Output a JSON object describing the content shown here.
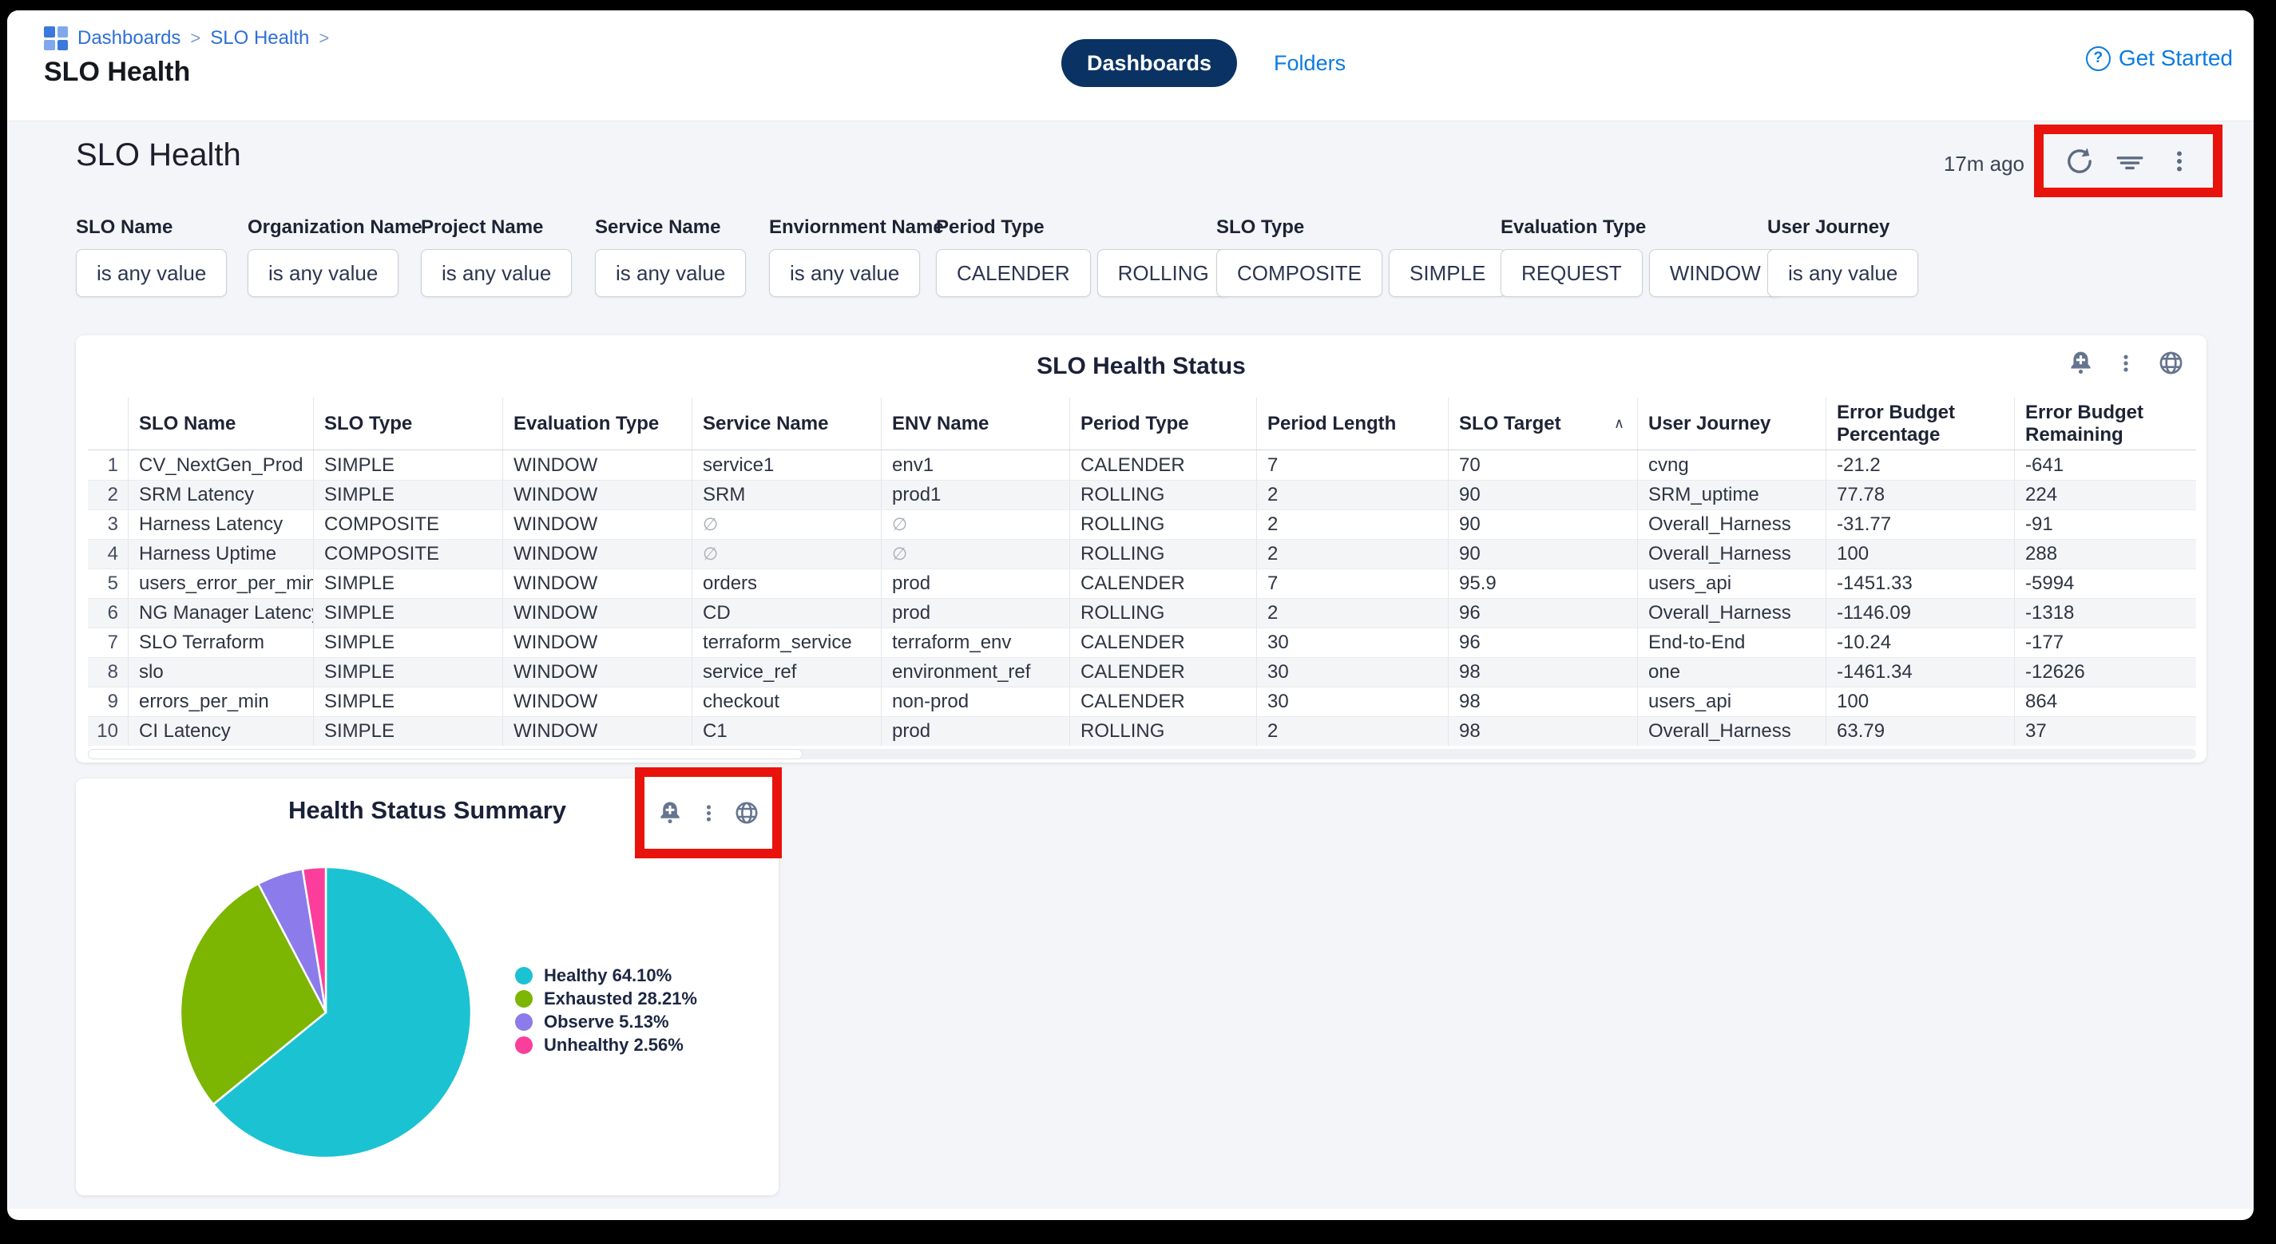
{
  "topbar": {
    "breadcrumb": {
      "items": [
        "Dashboards",
        "SLO Health"
      ],
      "separator": ">"
    },
    "page_title": "SLO Health",
    "tabs": {
      "dashboards": "Dashboards",
      "folders": "Folders"
    },
    "get_started_label": "Get Started",
    "help_icon_glyph": "?"
  },
  "dashboard": {
    "title": "SLO Health",
    "last_refreshed": "17m ago"
  },
  "filters": [
    {
      "label": "SLO Name",
      "chips": [
        "is any value"
      ]
    },
    {
      "label": "Organization Name",
      "chips": [
        "is any value"
      ]
    },
    {
      "label": "Project Name",
      "chips": [
        "is any value"
      ]
    },
    {
      "label": "Service Name",
      "chips": [
        "is any value"
      ]
    },
    {
      "label": "Enviornment Name",
      "chips": [
        "is any value"
      ]
    },
    {
      "label": "Period Type",
      "chips": [
        "CALENDER",
        "ROLLING"
      ]
    },
    {
      "label": "SLO Type",
      "chips": [
        "COMPOSITE",
        "SIMPLE"
      ]
    },
    {
      "label": "Evaluation Type",
      "chips": [
        "REQUEST",
        "WINDOW"
      ]
    },
    {
      "label": "User Journey",
      "chips": [
        "is any value"
      ]
    }
  ],
  "table": {
    "title": "SLO Health Status",
    "columns": [
      [
        "SLO Name"
      ],
      [
        "SLO Type"
      ],
      [
        "Evaluation Type"
      ],
      [
        "Service Name"
      ],
      [
        "ENV Name"
      ],
      [
        "Period Type"
      ],
      [
        "Period Length"
      ],
      [
        "SLO Target"
      ],
      [
        "User Journey"
      ],
      [
        "Error Budget",
        "Percentage"
      ],
      [
        "Error Budget",
        "Remaining"
      ]
    ],
    "sort": {
      "column": "SLO Target",
      "direction": "asc",
      "glyph": "∧"
    },
    "null_glyph": "∅",
    "rows": [
      [
        "CV_NextGen_Prod",
        "SIMPLE",
        "WINDOW",
        "service1",
        "env1",
        "CALENDER",
        "7",
        "70",
        "cvng",
        "-21.2",
        "-641"
      ],
      [
        "SRM Latency",
        "SIMPLE",
        "WINDOW",
        "SRM",
        "prod1",
        "ROLLING",
        "2",
        "90",
        "SRM_uptime",
        "77.78",
        "224"
      ],
      [
        "Harness Latency",
        "COMPOSITE",
        "WINDOW",
        "∅",
        "∅",
        "ROLLING",
        "2",
        "90",
        "Overall_Harness",
        "-31.77",
        "-91"
      ],
      [
        "Harness Uptime",
        "COMPOSITE",
        "WINDOW",
        "∅",
        "∅",
        "ROLLING",
        "2",
        "90",
        "Overall_Harness",
        "100",
        "288"
      ],
      [
        "users_error_per_min",
        "SIMPLE",
        "WINDOW",
        "orders",
        "prod",
        "CALENDER",
        "7",
        "95.9",
        "users_api",
        "-1451.33",
        "-5994"
      ],
      [
        "NG Manager Latency",
        "SIMPLE",
        "WINDOW",
        "CD",
        "prod",
        "ROLLING",
        "2",
        "96",
        "Overall_Harness",
        "-1146.09",
        "-1318"
      ],
      [
        "SLO Terraform",
        "SIMPLE",
        "WINDOW",
        "terraform_service",
        "terraform_env",
        "CALENDER",
        "30",
        "96",
        "End-to-End",
        "-10.24",
        "-177"
      ],
      [
        "slo",
        "SIMPLE",
        "WINDOW",
        "service_ref",
        "environment_ref",
        "CALENDER",
        "30",
        "98",
        "one",
        "-1461.34",
        "-12626"
      ],
      [
        "errors_per_min",
        "SIMPLE",
        "WINDOW",
        "checkout",
        "non-prod",
        "CALENDER",
        "30",
        "98",
        "users_api",
        "100",
        "864"
      ],
      [
        "CI Latency",
        "SIMPLE",
        "WINDOW",
        "C1",
        "prod",
        "ROLLING",
        "2",
        "98",
        "Overall_Harness",
        "63.79",
        "37"
      ]
    ]
  },
  "pie_card": {
    "title": "Health Status Summary"
  },
  "chart_data": {
    "type": "pie",
    "title": "Health Status Summary",
    "labels": [
      "Healthy",
      "Exhausted",
      "Observe",
      "Unhealthy"
    ],
    "values": [
      64.1,
      28.21,
      5.13,
      2.56
    ],
    "colors": [
      "#1bc2d2",
      "#7cb502",
      "#8c7bea",
      "#fb3e9b"
    ],
    "legend_labels": [
      "Healthy 64.10%",
      "Exhausted 28.21%",
      "Observe 5.13%",
      "Unhealthy 2.56%"
    ],
    "legend_position": "right",
    "start_angle_deg": -90,
    "direction": "clockwise"
  },
  "annotations": {
    "color": "#e8130c",
    "boxes": [
      "dashboard-action-icons",
      "pie-card-action-icons"
    ]
  },
  "colors": {
    "accent_blue": "#0b7be0",
    "breadcrumb_blue": "#2e6fd6",
    "tab_pill_navy": "#0a3364",
    "content_bg": "#f4f5f8",
    "icon_gray": "#66758f",
    "annotation_red": "#e8130c"
  }
}
